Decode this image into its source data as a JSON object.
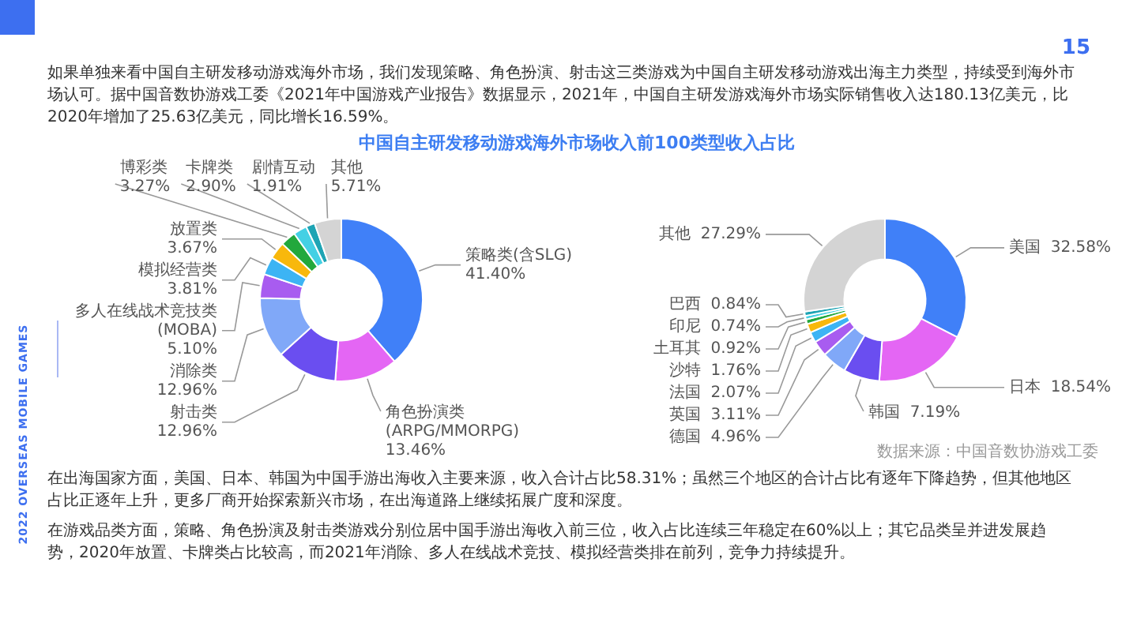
{
  "chart_data": [
    {
      "type": "donut",
      "title": "中国自主研发移动游戏海外市场收入前100类型收入占比",
      "categories": [
        "策略类(含SLG)",
        "角色扮演类(ARPG/MMORPG)",
        "射击类",
        "消除类",
        "多人在线战术竞技类(MOBA)",
        "模拟经营类",
        "放置类",
        "博彩类",
        "卡牌类",
        "剧情互动",
        "其他"
      ],
      "values": [
        41.4,
        13.46,
        12.96,
        12.96,
        5.1,
        3.81,
        3.67,
        3.27,
        2.9,
        1.91,
        5.71
      ],
      "value_labels": [
        "41.40%",
        "13.46%",
        "12.96%",
        "12.96%",
        "5.10%",
        "3.81%",
        "3.67%",
        "3.27%",
        "2.90%",
        "1.91%",
        "5.71%"
      ],
      "colors": [
        "#4080f8",
        "#e466f4",
        "#6a4ef0",
        "#80a8f8",
        "#a85cf0",
        "#3cb4f4",
        "#f8b80c",
        "#22a83c",
        "#44d0e4",
        "#1ea4b4",
        "#d4d4d4"
      ],
      "annotations": [
        "如果单独来看中国自主研发移动游戏海外市场，我们发现策略、角色扮演、射击这三类游戏为中国自主研发移动游戏出海主力类型，持续受到海外市场认可。据中国音数协游戏工委《2021年中国游戏产业报告》数据显示，2021年，中国自主研发游戏海外市场实际销售收入达180.13亿美元，比2020年增加了25.63亿美元，同比增长16.59%。",
        "在出海国家方面，美国、日本、韩国为中国手游出海收入主要来源，收入合计占比58.31%；虽然三个地区的合计占比有逐年下降趋势，但其他地区占比正逐年上升，更多厂商开始探索新兴市场，在出海道路上继续拓展广度和深度。",
        "在游戏品类方面，策略、角色扮演及射击类游戏分别位居中国手游出海收入前三位，收入占比连续三年稳定在60%以上；其它品类呈并进发展趋势，2020年放置、卡牌类占比较高，而2021年消除、多人在线战术竞技、模拟经营类排在前列，竞争力持续提升。",
        "15",
        "2022 OVERSEAS MOBILE GAMES"
      ]
    },
    {
      "type": "donut",
      "categories": [
        "美国",
        "日本",
        "韩国",
        "德国",
        "英国",
        "法国",
        "沙特",
        "土耳其",
        "印尼",
        "巴西",
        "其他"
      ],
      "values": [
        32.58,
        18.54,
        7.19,
        4.96,
        3.11,
        2.07,
        1.76,
        0.92,
        0.74,
        0.84,
        27.29
      ],
      "value_labels": [
        "32.58%",
        "18.54%",
        "7.19%",
        "4.96%",
        "3.11%",
        "2.07%",
        "1.76%",
        "0.92%",
        "0.74%",
        "0.84%",
        "27.29%"
      ],
      "colors": [
        "#4080f8",
        "#e466f4",
        "#6a4ef0",
        "#80a8f8",
        "#a85cf0",
        "#3cb4f4",
        "#f8b80c",
        "#22a83c",
        "#44d0e4",
        "#1ea4b4",
        "#d4d4d4"
      ],
      "annotations": [
        "数据来源：中国音数协游戏工委"
      ]
    }
  ]
}
